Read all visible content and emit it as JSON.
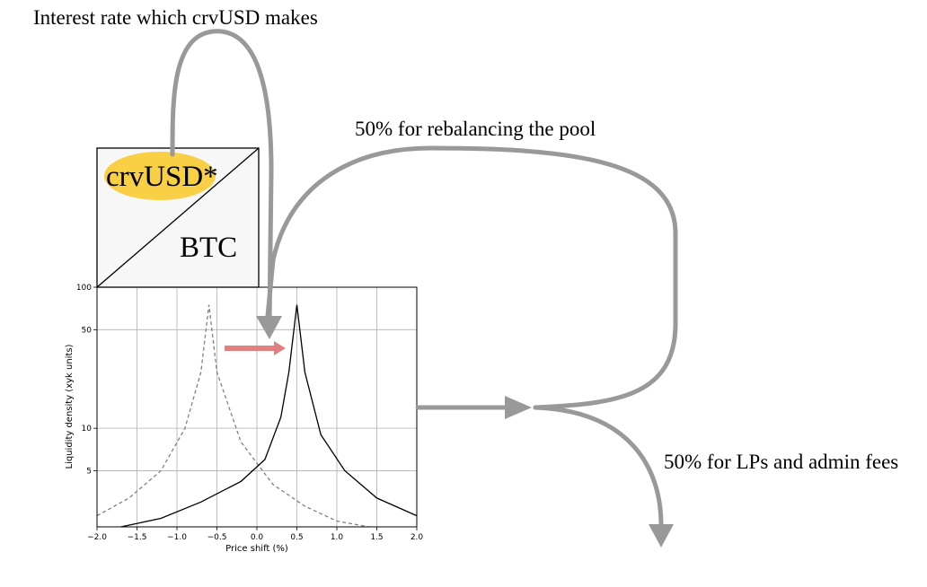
{
  "labels": {
    "interest": "Interest rate which crvUSD makes",
    "rebalance": "50% for rebalancing the pool",
    "lp_fees": "50% for LPs and admin fees",
    "token_top": "crvUSD*",
    "token_bottom": "BTC"
  },
  "colors": {
    "flow_arrow": "#999999",
    "shift_arrow": "#e08080",
    "highlight": "#f8cf45",
    "box_fill": "#f7f7f7",
    "dashed_curve": "#808080",
    "solid_curve": "#000000"
  },
  "chart_data": {
    "type": "line",
    "xlabel": "Price shift (%)",
    "ylabel": "Liquidity density (xyk units)",
    "xlim": [
      -2.0,
      2.0
    ],
    "ylim": [
      2,
      100
    ],
    "y_scale": "log",
    "x_ticks": [
      -2.0,
      -1.5,
      -1.0,
      -0.5,
      0.0,
      0.5,
      1.0,
      1.5,
      2.0
    ],
    "x_tick_labels": [
      "−2.0",
      "−1.5",
      "−1.0",
      "−0.5",
      "0.0",
      "0.5",
      "1.0",
      "1.5",
      "2.0"
    ],
    "y_ticks": [
      5,
      10,
      50,
      100
    ],
    "y_tick_labels": [
      "5",
      "10",
      "50",
      "100"
    ],
    "grid": true,
    "series": [
      {
        "style": "dashed",
        "peak_x": -0.6,
        "peak_y": 75,
        "points": [
          [
            -2.0,
            2.4
          ],
          [
            -1.6,
            3.2
          ],
          [
            -1.2,
            5.0
          ],
          [
            -0.9,
            10.0
          ],
          [
            -0.7,
            25.0
          ],
          [
            -0.6,
            75.0
          ],
          [
            -0.5,
            25.0
          ],
          [
            -0.2,
            8.0
          ],
          [
            0.2,
            4.0
          ],
          [
            0.6,
            2.8
          ],
          [
            1.0,
            2.2
          ],
          [
            1.4,
            1.9
          ]
        ]
      },
      {
        "style": "solid",
        "peak_x": 0.5,
        "peak_y": 75,
        "points": [
          [
            -1.7,
            1.9
          ],
          [
            -1.2,
            2.3
          ],
          [
            -0.7,
            3.0
          ],
          [
            -0.2,
            4.2
          ],
          [
            0.1,
            6.0
          ],
          [
            0.3,
            12.0
          ],
          [
            0.4,
            25.0
          ],
          [
            0.5,
            75.0
          ],
          [
            0.6,
            25.0
          ],
          [
            0.8,
            9.0
          ],
          [
            1.1,
            5.0
          ],
          [
            1.5,
            3.2
          ],
          [
            2.0,
            2.4
          ]
        ]
      }
    ]
  }
}
